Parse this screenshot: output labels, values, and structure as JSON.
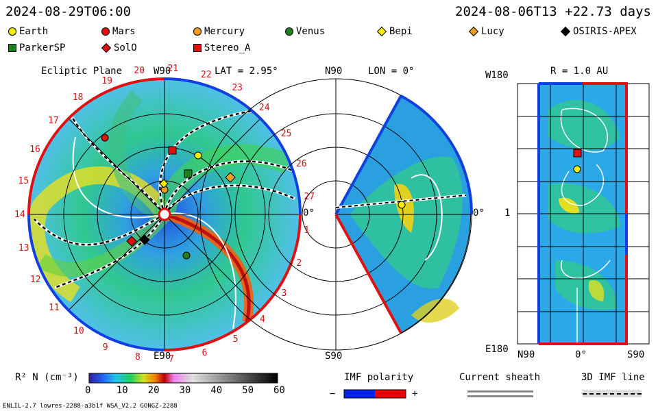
{
  "header": {
    "date_left": "2024-08-29T06:00",
    "date_right": "2024-08-06T13 +22.73 days"
  },
  "legend": [
    {
      "label": "Earth",
      "shape": "circle",
      "color": "#ffee00"
    },
    {
      "label": "Mars",
      "shape": "circle",
      "color": "#e01010"
    },
    {
      "label": "Mercury",
      "shape": "circle",
      "color": "#f0a020"
    },
    {
      "label": "Venus",
      "shape": "circle",
      "color": "#208020"
    },
    {
      "label": "Bepi",
      "shape": "diamond",
      "color": "#ffee00"
    },
    {
      "label": "Lucy",
      "shape": "diamond",
      "color": "#f0a020"
    },
    {
      "label": "OSIRIS-APEX",
      "shape": "diamond",
      "color": "#000000"
    },
    {
      "label": "ParkerSP",
      "shape": "square",
      "color": "#208020"
    },
    {
      "label": "SolO",
      "shape": "diamond",
      "color": "#e01010"
    },
    {
      "label": "Stereo_A",
      "shape": "square",
      "color": "#e01010"
    }
  ],
  "panel1": {
    "title": "Ecliptic Plane",
    "lat_label": "LAT = 2.95°",
    "top_label": "W90",
    "bottom_label": "E90",
    "right_label": "0°",
    "sectors": [
      "1",
      "2",
      "3",
      "4",
      "5",
      "6",
      "7",
      "8",
      "9",
      "10",
      "11",
      "12",
      "13",
      "14",
      "15",
      "16",
      "17",
      "18",
      "19",
      "20",
      "21",
      "22",
      "23",
      "24",
      "25",
      "26",
      "27"
    ]
  },
  "panel2": {
    "top_label": "N90",
    "lon_label": "LON = 0°",
    "bottom_label": "S90",
    "right_label": "0°"
  },
  "panel3": {
    "top_left_label": "W180",
    "r_label": "R = 1.0 AU",
    "left_mid_label": "1",
    "bottom_left_label": "E180",
    "x_labels": [
      "N90",
      "0°",
      "S90"
    ]
  },
  "colorbar": {
    "label": "R² N (cm⁻³)",
    "ticks": [
      "0",
      "10",
      "20",
      "30",
      "40",
      "50",
      "60"
    ]
  },
  "imf": {
    "title": "IMF polarity",
    "minus": "−",
    "plus": "+",
    "neg_color": "#0022ee",
    "pos_color": "#ee0000"
  },
  "current_sheath": {
    "title": "Current sheath"
  },
  "imf_line": {
    "title": "3D IMF line"
  },
  "footer": {
    "model": "ENLIL-2.7 lowres-2288-a3b1f WSA_V2.2 GONGZ-2288"
  }
}
